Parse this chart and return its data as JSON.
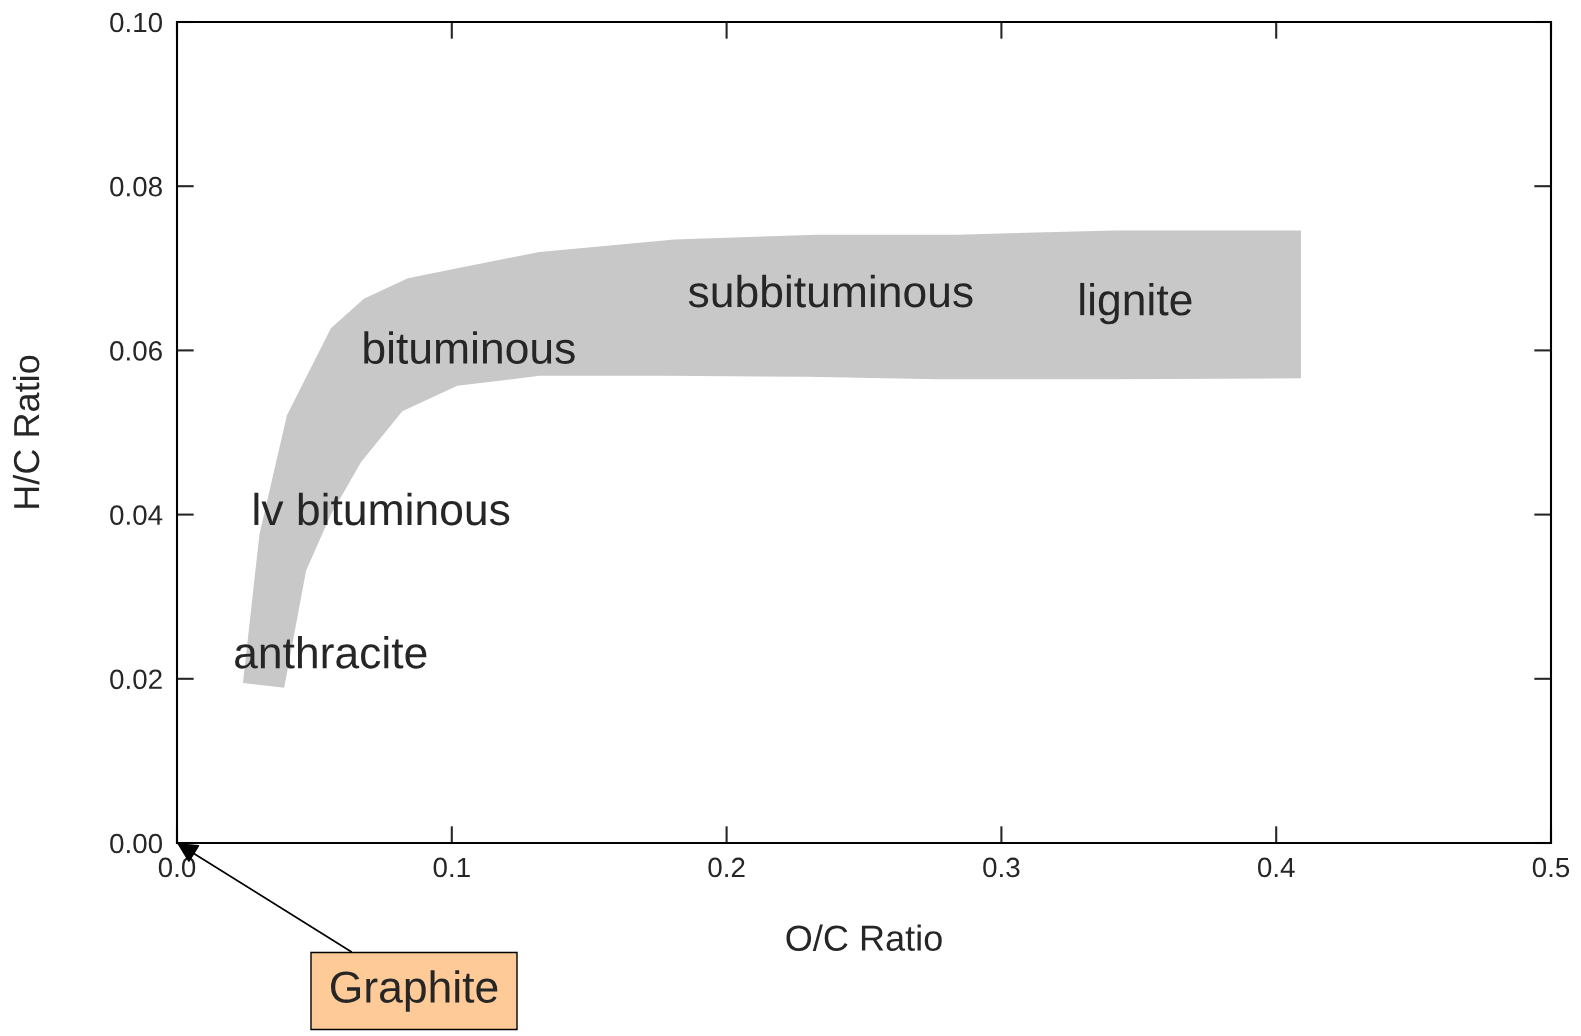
{
  "chart_data": {
    "type": "area",
    "xlabel": "O/C Ratio",
    "ylabel": "H/C Ratio",
    "xlim": [
      0,
      0.5
    ],
    "ylim": [
      0,
      0.1
    ],
    "xticks": [
      {
        "value": 0,
        "label": "0.0"
      },
      {
        "value": 0.1,
        "label": "0.1"
      },
      {
        "value": 0.2,
        "label": "0.2"
      },
      {
        "value": 0.3,
        "label": "0.3"
      },
      {
        "value": 0.4,
        "label": "0.4"
      },
      {
        "value": 0.5,
        "label": "0.5"
      }
    ],
    "yticks": [
      {
        "value": 0,
        "label": "0.00"
      },
      {
        "value": 0.02,
        "label": "0.02"
      },
      {
        "value": 0.04,
        "label": "0.04"
      },
      {
        "value": 0.06,
        "label": "0.06"
      },
      {
        "value": 0.08,
        "label": "0.08"
      },
      {
        "value": 0.1,
        "label": "0.10"
      }
    ],
    "grid": false,
    "legend": false,
    "series": [
      {
        "color": "#c8c8c8",
        "x": [
          0.024,
          0.03,
          0.04,
          0.056,
          0.068,
          0.084,
          0.102,
          0.132,
          0.181,
          0.233,
          0.284,
          0.341,
          0.409,
          0.409,
          0.339,
          0.277,
          0.229,
          0.177,
          0.132,
          0.102,
          0.082,
          0.067,
          0.056,
          0.047,
          0.039
        ],
        "values": [
          0.0195,
          0.0376,
          0.0521,
          0.0627,
          0.0663,
          0.0688,
          0.07,
          0.072,
          0.0735,
          0.0741,
          0.0741,
          0.0746,
          0.0746,
          0.0566,
          0.0565,
          0.0565,
          0.0568,
          0.0569,
          0.0569,
          0.0557,
          0.0526,
          0.0464,
          0.04,
          0.0332,
          0.0189
        ]
      }
    ],
    "annotations": [
      "anthracite",
      "lv bituminous",
      "bituminous",
      "subbituminous",
      "lignite",
      "Graphite"
    ]
  }
}
